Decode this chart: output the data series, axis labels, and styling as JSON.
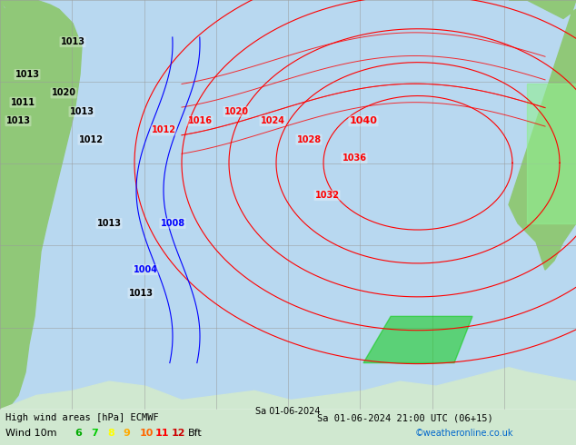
{
  "title_line1": "High wind areas [hPa] ECMWF",
  "title_line2": "Sa 01-06-2024 21:00 UTC (06+15)",
  "legend_label": "Wind 10m",
  "legend_values": [
    "6",
    "7",
    "8",
    "9",
    "10",
    "11",
    "12",
    "Bft"
  ],
  "legend_colors": [
    "#00aa00",
    "#00cc00",
    "#ffff00",
    "#ffaa00",
    "#ff6600",
    "#ff0000",
    "#cc0000"
  ],
  "copyright": "©weatheronline.co.uk",
  "bg_color": "#e8f4e8",
  "map_bg": "#c8e8ff",
  "grid_color": "#aaaaaa",
  "fig_width": 6.34,
  "fig_height": 4.9,
  "dpi": 100
}
